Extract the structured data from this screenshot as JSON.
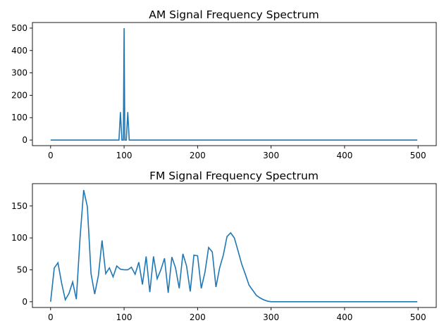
{
  "chart_data": [
    {
      "type": "line",
      "title": "AM Signal Frequency Spectrum",
      "xlabel": "",
      "ylabel": "",
      "xlim": [
        -24.75,
        524.75
      ],
      "ylim": [
        -25,
        525
      ],
      "xticks": [
        0,
        100,
        200,
        300,
        400,
        500
      ],
      "yticks": [
        0,
        100,
        200,
        300,
        400,
        500
      ],
      "color": "#1f77b4",
      "series": [
        {
          "x": [
            0,
            93,
            95,
            97,
            99,
            100,
            101,
            103,
            105,
            107,
            499
          ],
          "y": [
            0,
            0,
            125,
            0,
            0,
            500,
            0,
            0,
            125,
            0,
            0
          ]
        }
      ]
    },
    {
      "type": "line",
      "title": "FM Signal Frequency Spectrum",
      "xlabel": "",
      "ylabel": "",
      "xlim": [
        -24.75,
        524.75
      ],
      "ylim": [
        -9,
        185
      ],
      "xticks": [
        0,
        100,
        200,
        300,
        400,
        500
      ],
      "yticks": [
        0,
        50,
        100,
        150
      ],
      "color": "#1f77b4",
      "series": [
        {
          "x": [
            0,
            5,
            10,
            15,
            20,
            25,
            30,
            35,
            40,
            45,
            50,
            55,
            60,
            65,
            70,
            75,
            80,
            85,
            90,
            95,
            100,
            105,
            110,
            115,
            120,
            125,
            130,
            135,
            140,
            145,
            150,
            155,
            160,
            165,
            170,
            175,
            180,
            185,
            190,
            195,
            200,
            205,
            210,
            215,
            220,
            225,
            230,
            235,
            240,
            245,
            250,
            255,
            260,
            265,
            270,
            275,
            280,
            285,
            290,
            295,
            300
          ],
          "y": [
            0,
            53,
            61,
            29,
            3,
            13,
            31,
            4,
            99,
            175,
            149,
            44,
            12,
            41,
            96,
            44,
            53,
            39,
            56,
            51,
            50,
            50,
            54,
            43,
            62,
            27,
            71,
            15,
            71,
            36,
            50,
            68,
            14,
            70,
            53,
            21,
            75,
            56,
            16,
            73,
            72,
            21,
            46,
            85,
            78,
            23,
            53,
            73,
            102,
            108,
            100,
            80,
            59,
            43,
            26,
            18,
            10,
            6,
            3,
            1,
            0
          ]
        },
        {
          "x": [
            300,
            499
          ],
          "y": [
            0,
            0
          ]
        }
      ]
    }
  ]
}
